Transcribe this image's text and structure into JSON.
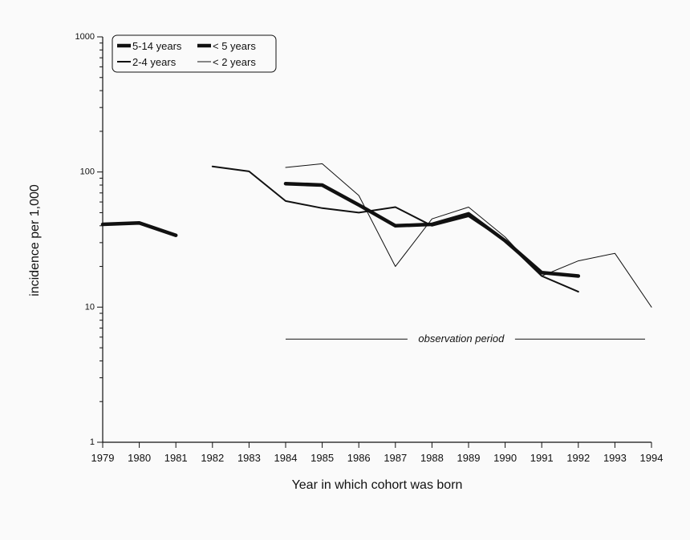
{
  "chart_data": {
    "type": "line",
    "xlabel": "Year in which cohort was born",
    "ylabel": "incidence per 1,000",
    "y_scale": "log",
    "ylim": [
      1,
      1000
    ],
    "xlim": [
      1979,
      1994
    ],
    "y_tick_labels": [
      "1",
      "10",
      "100",
      "1000"
    ],
    "x_tick_labels": [
      "1979",
      "1980",
      "1981",
      "1982",
      "1983",
      "1984",
      "1985",
      "1986",
      "1987",
      "1988",
      "1989",
      "1990",
      "1991",
      "1992",
      "1993",
      "1994"
    ],
    "legend": {
      "placement": "top-left"
    },
    "series": [
      {
        "name": "5-14 years",
        "stroke": "#111111",
        "segments": [
          [
            {
              "x": 1979,
              "y": 41
            },
            {
              "x": 1980,
              "y": 42
            },
            {
              "x": 1981,
              "y": 34
            }
          ]
        ]
      },
      {
        "name": "< 5 years",
        "stroke": "#111111",
        "segments": [
          [
            {
              "x": 1984,
              "y": 82
            },
            {
              "x": 1985,
              "y": 80
            },
            {
              "x": 1986,
              "y": 57
            },
            {
              "x": 1987,
              "y": 40
            },
            {
              "x": 1988,
              "y": 41
            },
            {
              "x": 1989,
              "y": 49
            },
            {
              "x": 1990,
              "y": 31
            },
            {
              "x": 1991,
              "y": 18
            },
            {
              "x": 1992,
              "y": 17
            }
          ]
        ]
      },
      {
        "name": "2-4 years",
        "stroke": "#111111",
        "segments": [
          [
            {
              "x": 1982,
              "y": 110
            },
            {
              "x": 1983,
              "y": 101
            },
            {
              "x": 1984,
              "y": 61
            },
            {
              "x": 1985,
              "y": 54
            },
            {
              "x": 1986,
              "y": 50
            },
            {
              "x": 1987,
              "y": 55
            },
            {
              "x": 1988,
              "y": 40
            },
            {
              "x": 1989,
              "y": 47
            },
            {
              "x": 1990,
              "y": 31
            },
            {
              "x": 1991,
              "y": 17
            },
            {
              "x": 1992,
              "y": 13
            }
          ]
        ]
      },
      {
        "name": "< 2 years",
        "stroke": "#111111",
        "segments": [
          [
            {
              "x": 1984,
              "y": 108
            },
            {
              "x": 1985,
              "y": 115
            },
            {
              "x": 1986,
              "y": 67
            },
            {
              "x": 1987,
              "y": 20
            },
            {
              "x": 1988,
              "y": 45
            },
            {
              "x": 1989,
              "y": 55
            },
            {
              "x": 1990,
              "y": 33
            },
            {
              "x": 1991,
              "y": 17
            },
            {
              "x": 1992,
              "y": 22
            },
            {
              "x": 1993,
              "y": 25
            },
            {
              "x": 1994,
              "y": 10
            }
          ]
        ]
      }
    ],
    "annotation": {
      "text": "observation period",
      "x_start": 1984,
      "x_end": 1994,
      "y": 5.8
    }
  }
}
